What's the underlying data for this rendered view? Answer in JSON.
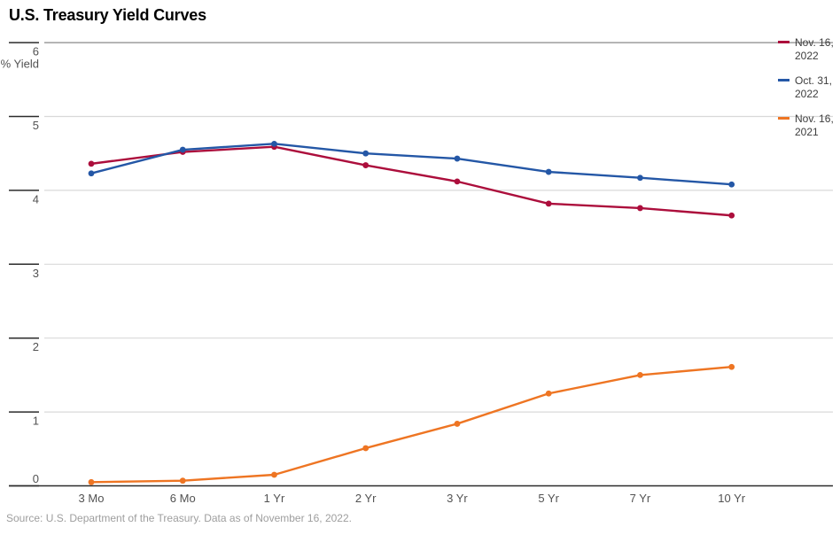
{
  "title": "U.S. Treasury Yield Curves",
  "footer": {
    "source": "Source: U.S. Department of the Treasury. Data as of November 16, 2022."
  },
  "chart_data": {
    "type": "line",
    "title": "U.S. Treasury Yield Curves",
    "xlabel": "",
    "ylabel": "% Yield",
    "ylim": [
      0,
      6
    ],
    "yticks": [
      6,
      5,
      4,
      3,
      2,
      1,
      0
    ],
    "grid": true,
    "legend_position": "right",
    "marker": "circle",
    "categories": [
      "3 Mo",
      "6 Mo",
      "1 Yr",
      "2 Yr",
      "3 Yr",
      "5 Yr",
      "7 Yr",
      "10 Yr"
    ],
    "series": [
      {
        "name": "Nov. 16, 2022",
        "color": "#AC0E3C",
        "values": [
          4.36,
          4.52,
          4.59,
          4.34,
          4.12,
          3.82,
          3.76,
          3.66
        ]
      },
      {
        "name": "Oct. 31, 2022",
        "color": "#2457A6",
        "values": [
          4.23,
          4.55,
          4.63,
          4.5,
          4.43,
          4.25,
          4.17,
          4.08
        ]
      },
      {
        "name": "Nov. 16, 2021",
        "color": "#EE7523",
        "values": [
          0.05,
          0.07,
          0.15,
          0.51,
          0.84,
          1.25,
          1.5,
          1.61
        ]
      }
    ]
  },
  "colors": {
    "axis": "#2b2b2b",
    "grid_light": "#d9d9d9",
    "grid_top": "#8a8a8a",
    "tick_label": "#525252"
  }
}
